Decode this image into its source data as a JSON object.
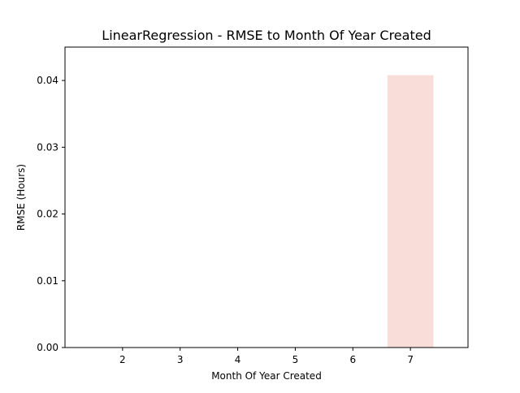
{
  "chart_data": {
    "type": "bar",
    "title": "LinearRegression - RMSE to Month Of Year Created",
    "xlabel": "Month Of Year Created",
    "ylabel": "RMSE (Hours)",
    "categories": [
      7
    ],
    "values": [
      0.0408
    ],
    "xticks": [
      "2",
      "3",
      "4",
      "5",
      "6",
      "7"
    ],
    "xtick_values": [
      2,
      3,
      4,
      5,
      6,
      7
    ],
    "yticks": [
      "0.00",
      "0.01",
      "0.02",
      "0.03",
      "0.04"
    ],
    "ytick_values": [
      0.0,
      0.01,
      0.02,
      0.03,
      0.04
    ],
    "xlim": [
      1.0,
      8.0
    ],
    "ylim": [
      0.0,
      0.045
    ],
    "bar_width": 0.8,
    "bar_color": "#f9ddd9",
    "grid": false,
    "legend": "none"
  }
}
